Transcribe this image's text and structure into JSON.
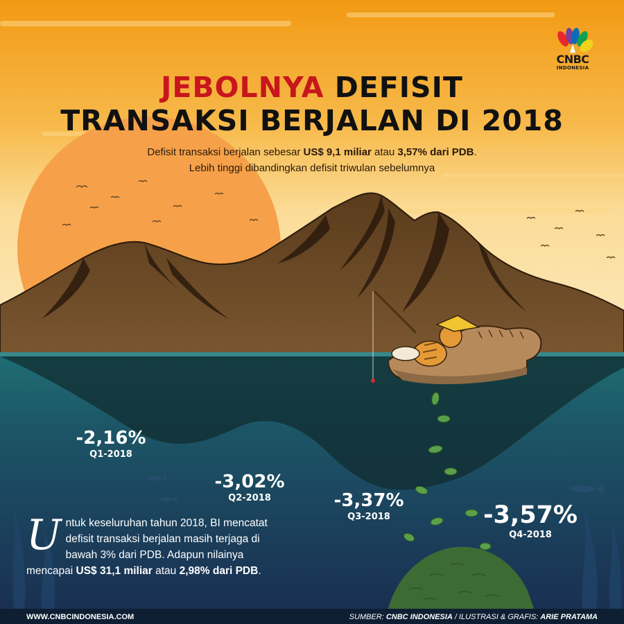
{
  "brand": {
    "logo_word": "CNBC",
    "logo_sub": "INDONESIA"
  },
  "title": {
    "accent": "JEBOLNYA",
    "line1_rest": " DEFISIT",
    "line2": "TRANSAKSI BERJALAN DI 2018"
  },
  "subtitle": {
    "l1_a": "Defisit transaksi berjalan sebesar ",
    "l1_b": "US$ 9,1 miliar",
    "l1_c": " atau ",
    "l1_d": "3,57% dari PDB",
    "l1_e": ".",
    "l2": "Lebih tinggi dibandingkan defisit triwulan sebelumnya"
  },
  "quarters": [
    {
      "value": "-2,16%",
      "label": "Q1-2018"
    },
    {
      "value": "-3,02%",
      "label": "Q2-2018"
    },
    {
      "value": "-3,37%",
      "label": "Q3-2018"
    },
    {
      "value": "-3,57%",
      "label": "Q4-2018"
    }
  ],
  "description": {
    "dropcap": "U",
    "text_a": "ntuk keseluruhan tahun 2018, BI mencatat defisit transaksi berjalan masih terjaga di bawah 3% dari PDB. Adapun nilainya mencapai ",
    "bold_a": "US$ 31,1 miliar",
    "text_b": " atau ",
    "bold_b": "2,98% dari PDB",
    "text_c": "."
  },
  "footer": {
    "website": "WWW.CNBCINDONESIA.COM",
    "source_label": "SUMBER: ",
    "source": "CNBC INDONESIA",
    "sep": " / ILUSTRASI & GRAFIS: ",
    "author": "ARIE PRATAMA"
  },
  "colors": {
    "sky_top": "#f4a51f",
    "sky_bottom": "#fbe3a6",
    "sun": "#f6a14a",
    "mountain": "#6b4a26",
    "title_accent": "#c8161d",
    "water_top": "#1f6a72",
    "water_deep": "#1a3658",
    "footer": "#0e1f33"
  }
}
